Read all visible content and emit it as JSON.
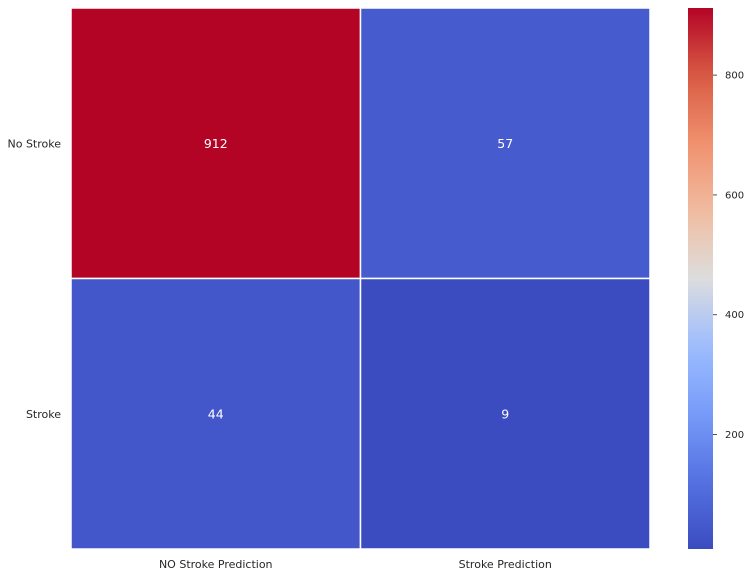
{
  "chart_data": {
    "type": "heatmap",
    "title": "",
    "xlabel": "",
    "ylabel": "",
    "x_categories": [
      "NO Stroke Prediction",
      "Stroke Prediction"
    ],
    "y_categories": [
      "No Stroke",
      "Stroke"
    ],
    "values": [
      [
        912,
        57
      ],
      [
        44,
        9
      ]
    ],
    "cell_labels": [
      [
        "912",
        "57"
      ],
      [
        "44",
        "9"
      ]
    ],
    "colormap": "coolwarm",
    "vmin": 9,
    "vmax": 912,
    "colorbar": {
      "ticks": [
        200,
        400,
        600,
        800
      ],
      "tick_labels": [
        "200",
        "400",
        "600",
        "800"
      ]
    },
    "grid": false,
    "cell_separator_color": "#ffffff",
    "annotation_text_color": "#ffffff"
  }
}
